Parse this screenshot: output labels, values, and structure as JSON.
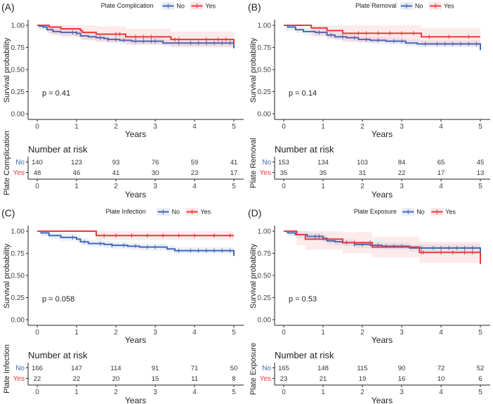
{
  "chart_data": [
    {
      "type": "line",
      "panel_label": "(A)",
      "legend_title": "Plate Complication",
      "legend": [
        "No",
        "Yes"
      ],
      "xlabel": "Years",
      "ylabel": "Survival probability",
      "xlim": [
        0,
        5
      ],
      "ylim": [
        0,
        1
      ],
      "xticks": [
        "0",
        "1",
        "2",
        "3",
        "4",
        "5"
      ],
      "yticks": [
        "0.00",
        "0.25",
        "0.50",
        "0.75",
        "1.00"
      ],
      "pvalue": "p = 0.41",
      "risk_title": "Number at risk",
      "strata_title": "Plate Complication",
      "series": [
        {
          "name": "No",
          "color": "#4169b8",
          "ci": 0.04,
          "steps": [
            [
              0,
              1
            ],
            [
              0.05,
              0.99
            ],
            [
              0.15,
              0.98
            ],
            [
              0.25,
              0.95
            ],
            [
              0.4,
              0.93
            ],
            [
              0.6,
              0.92
            ],
            [
              1.0,
              0.91
            ],
            [
              1.1,
              0.88
            ],
            [
              1.3,
              0.87
            ],
            [
              1.5,
              0.86
            ],
            [
              1.7,
              0.85
            ],
            [
              1.8,
              0.84
            ],
            [
              2.1,
              0.83
            ],
            [
              2.4,
              0.82
            ],
            [
              3.2,
              0.8
            ],
            [
              5,
              0.74
            ]
          ],
          "censor": [
            0.9,
            1.0,
            1.6,
            1.8,
            2.0,
            2.2,
            2.5,
            2.7,
            2.9,
            3.0,
            3.6,
            3.9,
            4.1,
            4.3,
            4.5,
            4.7,
            4.9
          ],
          "risk": [
            "140",
            "123",
            "93",
            "76",
            "59",
            "41"
          ]
        },
        {
          "name": "Yes",
          "color": "#e8383d",
          "ci": 0.09,
          "steps": [
            [
              0,
              1
            ],
            [
              0.3,
              0.98
            ],
            [
              0.6,
              0.96
            ],
            [
              1.1,
              0.94
            ],
            [
              1.15,
              0.92
            ],
            [
              1.5,
              0.9
            ],
            [
              2.25,
              0.87
            ],
            [
              3.4,
              0.84
            ],
            [
              5,
              0.79
            ]
          ],
          "censor": [
            2.0,
            2.1,
            2.5,
            2.7,
            2.9,
            3.5,
            3.6,
            4.3,
            4.6,
            4.8
          ],
          "risk": [
            "48",
            "46",
            "41",
            "30",
            "23",
            "17"
          ]
        }
      ]
    },
    {
      "type": "line",
      "panel_label": "(B)",
      "legend_title": "Plate Removal",
      "legend": [
        "No",
        "Yes"
      ],
      "xlabel": "Years",
      "ylabel": "Survival probability",
      "xlim": [
        0,
        5
      ],
      "ylim": [
        0,
        1
      ],
      "xticks": [
        "0",
        "1",
        "2",
        "3",
        "4",
        "5"
      ],
      "yticks": [
        "0.00",
        "0.25",
        "0.50",
        "0.75",
        "1.00"
      ],
      "pvalue": "p = 0.14",
      "risk_title": "Number at risk",
      "strata_title": "Plate Removal",
      "series": [
        {
          "name": "No",
          "color": "#4169b8",
          "ci": 0.04,
          "steps": [
            [
              0,
              1
            ],
            [
              0.1,
              0.98
            ],
            [
              0.3,
              0.95
            ],
            [
              0.5,
              0.93
            ],
            [
              0.8,
              0.92
            ],
            [
              1.1,
              0.89
            ],
            [
              1.3,
              0.87
            ],
            [
              1.6,
              0.86
            ],
            [
              1.9,
              0.84
            ],
            [
              2.2,
              0.83
            ],
            [
              2.6,
              0.82
            ],
            [
              3.1,
              0.8
            ],
            [
              3.4,
              0.79
            ],
            [
              5,
              0.72
            ]
          ],
          "censor": [
            0.9,
            1.2,
            1.5,
            1.8,
            2.1,
            2.4,
            2.8,
            3.0,
            3.6,
            3.9,
            4.1,
            4.3,
            4.5,
            4.7,
            4.9
          ],
          "risk": [
            "153",
            "134",
            "103",
            "84",
            "65",
            "45"
          ]
        },
        {
          "name": "Yes",
          "color": "#e8383d",
          "ci": 0.1,
          "steps": [
            [
              0,
              1
            ],
            [
              0.7,
              0.97
            ],
            [
              1.1,
              0.94
            ],
            [
              1.5,
              0.91
            ],
            [
              3.5,
              0.87
            ],
            [
              5,
              0.87
            ]
          ],
          "censor": [
            1.9,
            2.1,
            2.4,
            2.7,
            3.0,
            3.3,
            3.7,
            4.2,
            4.7
          ],
          "risk": [
            "35",
            "35",
            "31",
            "22",
            "17",
            "13"
          ]
        }
      ]
    },
    {
      "type": "line",
      "panel_label": "(C)",
      "legend_title": "Plate Infection",
      "legend": [
        "No",
        "Yes"
      ],
      "xlabel": "Years",
      "ylabel": "Survival probability",
      "xlim": [
        0,
        5
      ],
      "ylim": [
        0,
        1
      ],
      "xticks": [
        "0",
        "1",
        "2",
        "3",
        "4",
        "5"
      ],
      "yticks": [
        "0.00",
        "0.25",
        "0.50",
        "0.75",
        "1.00"
      ],
      "pvalue": "p = 0.058",
      "risk_title": "Number at risk",
      "strata_title": "Plate Infection",
      "series": [
        {
          "name": "No",
          "color": "#4169b8",
          "ci": 0.04,
          "steps": [
            [
              0,
              1
            ],
            [
              0.1,
              0.98
            ],
            [
              0.3,
              0.95
            ],
            [
              0.6,
              0.93
            ],
            [
              1.0,
              0.91
            ],
            [
              1.1,
              0.88
            ],
            [
              1.3,
              0.86
            ],
            [
              1.7,
              0.85
            ],
            [
              1.9,
              0.84
            ],
            [
              2.3,
              0.83
            ],
            [
              2.6,
              0.82
            ],
            [
              3.3,
              0.8
            ],
            [
              3.5,
              0.78
            ],
            [
              5,
              0.72
            ]
          ],
          "censor": [
            0.9,
            1.2,
            1.6,
            1.9,
            2.2,
            2.5,
            2.8,
            3.0,
            3.6,
            3.9,
            4.1,
            4.3,
            4.5,
            4.7,
            4.9
          ],
          "risk": [
            "166",
            "147",
            "114",
            "91",
            "71",
            "50"
          ]
        },
        {
          "name": "Yes",
          "color": "#e8383d",
          "ci": 0.05,
          "steps": [
            [
              0,
              1
            ],
            [
              1.5,
              0.95
            ],
            [
              5,
              0.95
            ]
          ],
          "censor": [
            1.7,
            2.0,
            2.4,
            2.8,
            3.2,
            3.6,
            4.0,
            4.5,
            4.9
          ],
          "risk": [
            "22",
            "22",
            "20",
            "15",
            "11",
            "8"
          ]
        }
      ]
    },
    {
      "type": "line",
      "panel_label": "(D)",
      "legend_title": "Plate Exposure",
      "legend": [
        "No",
        "Yes"
      ],
      "xlabel": "Years",
      "ylabel": "Survival probability",
      "xlim": [
        0,
        5
      ],
      "ylim": [
        0,
        1
      ],
      "xticks": [
        "0",
        "1",
        "2",
        "3",
        "4",
        "5"
      ],
      "yticks": [
        "0.00",
        "0.25",
        "0.50",
        "0.75",
        "1.00"
      ],
      "pvalue": "p = 0.53",
      "risk_title": "Number at risk",
      "strata_title": "Plate Exposure",
      "series": [
        {
          "name": "No",
          "color": "#4169b8",
          "ci": 0.04,
          "steps": [
            [
              0,
              1
            ],
            [
              0.1,
              0.98
            ],
            [
              0.3,
              0.96
            ],
            [
              0.6,
              0.94
            ],
            [
              1.0,
              0.92
            ],
            [
              1.1,
              0.89
            ],
            [
              1.3,
              0.88
            ],
            [
              1.5,
              0.87
            ],
            [
              1.8,
              0.85
            ],
            [
              2.2,
              0.84
            ],
            [
              2.5,
              0.83
            ],
            [
              3.2,
              0.81
            ],
            [
              5,
              0.76
            ]
          ],
          "censor": [
            0.8,
            0.9,
            1.0,
            1.6,
            1.8,
            2.0,
            2.4,
            2.6,
            2.8,
            3.0,
            3.5,
            3.8,
            4.0,
            4.2,
            4.4,
            4.6,
            4.8
          ],
          "risk": [
            "165",
            "148",
            "115",
            "90",
            "72",
            "52"
          ]
        },
        {
          "name": "Yes",
          "color": "#e8383d",
          "ci": 0.12,
          "steps": [
            [
              0,
              1
            ],
            [
              0.33,
              0.96
            ],
            [
              0.55,
              0.91
            ],
            [
              1.5,
              0.87
            ],
            [
              2.25,
              0.82
            ],
            [
              3.45,
              0.76
            ],
            [
              5,
              0.63
            ]
          ],
          "censor": [
            1.8,
            2.2,
            3.5,
            3.55,
            4.0,
            4.3,
            4.6,
            4.8
          ],
          "risk": [
            "23",
            "21",
            "19",
            "16",
            "10",
            "6"
          ]
        }
      ]
    }
  ]
}
